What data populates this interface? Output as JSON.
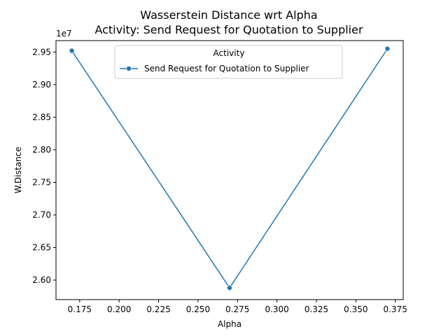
{
  "chart_data": {
    "type": "line",
    "title": "Wasserstein Distance wrt Alpha",
    "subtitle": "Activity: Send Request for Quotation to Supplier",
    "xlabel": "Alpha",
    "ylabel": "W.Distance",
    "y_offset_label": "1e7",
    "x": [
      0.17,
      0.27,
      0.37
    ],
    "series": [
      {
        "name": "Send Request for Quotation to Supplier",
        "values": [
          2.952,
          2.588,
          2.955
        ],
        "color": "#1f77b4",
        "marker": "circle"
      }
    ],
    "xlim": [
      0.16,
      0.38
    ],
    "ylim": [
      2.57,
      2.9675
    ],
    "xticks": [
      "0.175",
      "0.200",
      "0.225",
      "0.250",
      "0.275",
      "0.300",
      "0.325",
      "0.350",
      "0.375"
    ],
    "yticks": [
      "2.60",
      "2.65",
      "2.70",
      "2.75",
      "2.80",
      "2.85",
      "2.90",
      "2.95"
    ],
    "grid": false,
    "legend": {
      "title": "Activity",
      "placement": "top-center"
    }
  }
}
